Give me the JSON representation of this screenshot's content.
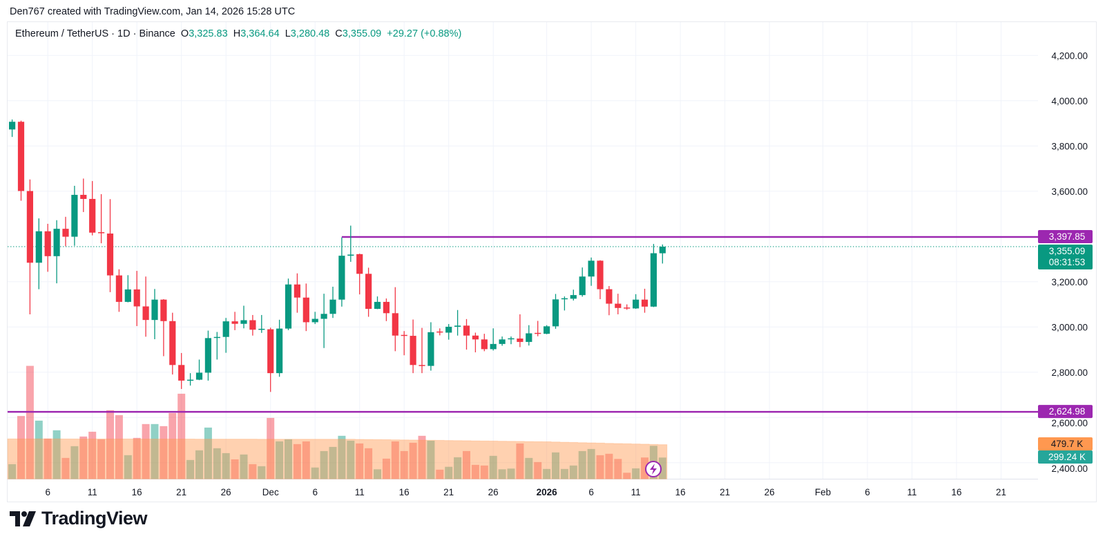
{
  "header": {
    "text": "Den767 created with TradingView.com, Jan 14, 2026 15:28 UTC"
  },
  "legend": {
    "symbol": "Ethereum / TetherUS · 1D · Binance",
    "o_label": "O",
    "o": "3,325.83",
    "h_label": "H",
    "h": "3,364.64",
    "l_label": "L",
    "l": "3,280.48",
    "c_label": "C",
    "c": "3,355.09",
    "change": "+29.27 (+0.88%)"
  },
  "logo": {
    "text": "TradingView"
  },
  "colors": {
    "up": "#089981",
    "down": "#f23645",
    "level": "#9c27b0",
    "volume_ma": "#ff9850",
    "text": "#131722"
  },
  "chart_data": {
    "type": "candlestick",
    "ylim": [
      2400,
      4300
    ],
    "y_ticks": [
      "4,200.00",
      "4,000.00",
      "3,800.00",
      "3,600.00",
      "3,200.00",
      "3,000.00",
      "2,800.00",
      "2,600.00",
      "2,400.00"
    ],
    "y_tick_values": [
      4200,
      4000,
      3800,
      3600,
      3200,
      3000,
      2800,
      2600,
      2400
    ],
    "x_ticks": [
      {
        "day": "Nov 6",
        "label": "6"
      },
      {
        "day": "Nov 11",
        "label": "11"
      },
      {
        "day": "Nov 16",
        "label": "16"
      },
      {
        "day": "Nov 21",
        "label": "21"
      },
      {
        "day": "Nov 26",
        "label": "26"
      },
      {
        "day": "Dec 1",
        "label": "Dec"
      },
      {
        "day": "Dec 6",
        "label": "6"
      },
      {
        "day": "Dec 11",
        "label": "11"
      },
      {
        "day": "Dec 16",
        "label": "16"
      },
      {
        "day": "Dec 21",
        "label": "21"
      },
      {
        "day": "Dec 26",
        "label": "26"
      },
      {
        "day": "Jan 1",
        "label": "2026"
      },
      {
        "day": "Jan 6",
        "label": "6"
      },
      {
        "day": "Jan 11",
        "label": "11"
      },
      {
        "day": "Jan 16",
        "label": "16"
      },
      {
        "day": "Jan 21",
        "label": "21"
      },
      {
        "day": "Jan 26",
        "label": "26"
      },
      {
        "day": "Feb 1",
        "label": "Feb"
      },
      {
        "day": "Feb 6",
        "label": "6"
      },
      {
        "day": "Feb 11",
        "label": "11"
      },
      {
        "day": "Feb 16",
        "label": "16"
      },
      {
        "day": "Feb 21",
        "label": "21"
      }
    ],
    "grid": true,
    "columns": [
      "date",
      "open",
      "high",
      "low",
      "close",
      "volume_k"
    ],
    "candles": [
      [
        "Nov 2",
        3873,
        3917,
        3840,
        3907,
        207
      ],
      [
        "Nov 3",
        3907,
        3912,
        3558,
        3601,
        880
      ],
      [
        "Nov 4",
        3601,
        3652,
        3056,
        3284,
        1580
      ],
      [
        "Nov 5",
        3284,
        3480,
        3167,
        3423,
        815
      ],
      [
        "Nov 6",
        3423,
        3456,
        3244,
        3313,
        564
      ],
      [
        "Nov 7",
        3313,
        3472,
        3193,
        3434,
        680
      ],
      [
        "Nov 8",
        3434,
        3487,
        3357,
        3399,
        294
      ],
      [
        "Nov 9",
        3399,
        3624,
        3359,
        3584,
        458
      ],
      [
        "Nov 10",
        3584,
        3656,
        3508,
        3566,
        593
      ],
      [
        "Nov 11",
        3566,
        3645,
        3405,
        3417,
        660
      ],
      [
        "Nov 12",
        3419,
        3587,
        3370,
        3415,
        554
      ],
      [
        "Nov 13",
        3413,
        3565,
        3154,
        3228,
        960
      ],
      [
        "Nov 14",
        3228,
        3255,
        3067,
        3111,
        892
      ],
      [
        "Nov 15",
        3111,
        3229,
        3109,
        3166,
        332
      ],
      [
        "Nov 16",
        3166,
        3248,
        3004,
        3091,
        574
      ],
      [
        "Nov 17",
        3091,
        3223,
        2957,
        3031,
        767
      ],
      [
        "Nov 18",
        3031,
        3168,
        2946,
        3121,
        767
      ],
      [
        "Nov 19",
        3121,
        3123,
        2871,
        3026,
        738
      ],
      [
        "Nov 20",
        3026,
        3063,
        2790,
        2832,
        921
      ],
      [
        "Nov 21",
        2832,
        2885,
        2726,
        2763,
        1191
      ],
      [
        "Nov 22",
        2763,
        2796,
        2741,
        2767,
        265
      ],
      [
        "Nov 23",
        2767,
        2856,
        2765,
        2798,
        400
      ],
      [
        "Nov 24",
        2798,
        2984,
        2763,
        2951,
        718
      ],
      [
        "Nov 25",
        2953,
        2978,
        2856,
        2956,
        429
      ],
      [
        "Nov 26",
        2956,
        3040,
        2886,
        3025,
        361
      ],
      [
        "Nov 27",
        3025,
        3067,
        2986,
        3014,
        274
      ],
      [
        "Nov 28",
        3014,
        3094,
        2994,
        3030,
        342
      ],
      [
        "Nov 29",
        3030,
        3053,
        2962,
        2988,
        207
      ],
      [
        "Nov 30",
        2990,
        3053,
        2974,
        2992,
        178
      ],
      [
        "Dec 1",
        2990,
        2997,
        2713,
        2796,
        853
      ],
      [
        "Dec 2",
        2796,
        3032,
        2780,
        2993,
        525
      ],
      [
        "Dec 3",
        2993,
        3214,
        2986,
        3188,
        554
      ],
      [
        "Dec 4",
        3188,
        3237,
        3063,
        3130,
        487
      ],
      [
        "Dec 5",
        3130,
        3192,
        2982,
        3021,
        525
      ],
      [
        "Dec 6",
        3021,
        3067,
        3013,
        3036,
        160
      ],
      [
        "Dec 7",
        3036,
        3147,
        2907,
        3058,
        390
      ],
      [
        "Dec 8",
        3058,
        3178,
        3040,
        3121,
        448
      ],
      [
        "Dec 9",
        3121,
        3396,
        3090,
        3315,
        603
      ],
      [
        "Dec 10",
        3315,
        3448,
        3288,
        3320,
        535
      ],
      [
        "Dec 11",
        3322,
        3324,
        3144,
        3235,
        496
      ],
      [
        "Dec 12",
        3235,
        3262,
        3045,
        3080,
        429
      ],
      [
        "Dec 13",
        3080,
        3135,
        3079,
        3111,
        135
      ],
      [
        "Dec 14",
        3111,
        3126,
        3026,
        3061,
        284
      ],
      [
        "Dec 15",
        3061,
        3176,
        2893,
        2962,
        525
      ],
      [
        "Dec 16",
        2965,
        2982,
        2875,
        2963,
        390
      ],
      [
        "Dec 17",
        2961,
        3033,
        2796,
        2832,
        506
      ],
      [
        "Dec 18",
        2832,
        2996,
        2796,
        2828,
        603
      ],
      [
        "Dec 19",
        2828,
        3021,
        2807,
        2977,
        535
      ],
      [
        "Dec 20",
        2980,
        2994,
        2963,
        2977,
        130
      ],
      [
        "Dec 21",
        2975,
        3013,
        2944,
        3001,
        170
      ],
      [
        "Dec 22",
        3001,
        3075,
        2962,
        3006,
        303
      ],
      [
        "Dec 23",
        3006,
        3035,
        2900,
        2962,
        390
      ],
      [
        "Dec 24",
        2962,
        2975,
        2888,
        2945,
        197
      ],
      [
        "Dec 25",
        2945,
        2970,
        2893,
        2902,
        188
      ],
      [
        "Dec 26",
        2902,
        2994,
        2896,
        2925,
        323
      ],
      [
        "Dec 27",
        2925,
        2958,
        2917,
        2945,
        135
      ],
      [
        "Dec 28",
        2948,
        2958,
        2924,
        2950,
        145
      ],
      [
        "Dec 29",
        2949,
        3056,
        2911,
        2934,
        496
      ],
      [
        "Dec 30",
        2934,
        3008,
        2918,
        2972,
        294
      ],
      [
        "Dec 31",
        2974,
        3027,
        2959,
        2971,
        236
      ],
      [
        "Jan 1",
        2970,
        3008,
        2968,
        3003,
        140
      ],
      [
        "Jan 2",
        3003,
        3146,
        2992,
        3122,
        371
      ],
      [
        "Jan 3",
        3124,
        3135,
        3073,
        3127,
        140
      ],
      [
        "Jan 4",
        3125,
        3165,
        3117,
        3141,
        188
      ],
      [
        "Jan 5",
        3141,
        3263,
        3134,
        3223,
        390
      ],
      [
        "Jan 6",
        3223,
        3307,
        3182,
        3293,
        419
      ],
      [
        "Jan 7",
        3293,
        3295,
        3123,
        3167,
        332
      ],
      [
        "Jan 8",
        3167,
        3181,
        3052,
        3103,
        352
      ],
      [
        "Jan 9",
        3103,
        3147,
        3056,
        3084,
        280
      ],
      [
        "Jan 10",
        3086,
        3100,
        3076,
        3083,
        87
      ],
      [
        "Jan 11",
        3082,
        3145,
        3080,
        3121,
        148
      ],
      [
        "Jan 12",
        3121,
        3169,
        3063,
        3090,
        300
      ],
      [
        "Jan 13",
        3090,
        3367,
        3088,
        3326,
        463
      ],
      [
        "Jan 14",
        3325.83,
        3364.64,
        3280.48,
        3355.09,
        299.24
      ]
    ],
    "volume_ma": [
      [
        "Nov 2",
        560
      ],
      [
        "Dec 10",
        555
      ],
      [
        "Jan 1",
        520
      ],
      [
        "Jan 14",
        479.7
      ]
    ],
    "levels": [
      {
        "price": 3397.85,
        "label": "3,397.85",
        "from": "Dec 9"
      },
      {
        "price": 2624.98,
        "label": "2,624.98",
        "from": "Nov 2"
      }
    ],
    "last_price": {
      "price": 3355.09,
      "label": "3,355.09",
      "countdown": "08:31:53"
    },
    "volume_labels": {
      "ma": "479.7 K",
      "last": "299.24 K"
    }
  }
}
